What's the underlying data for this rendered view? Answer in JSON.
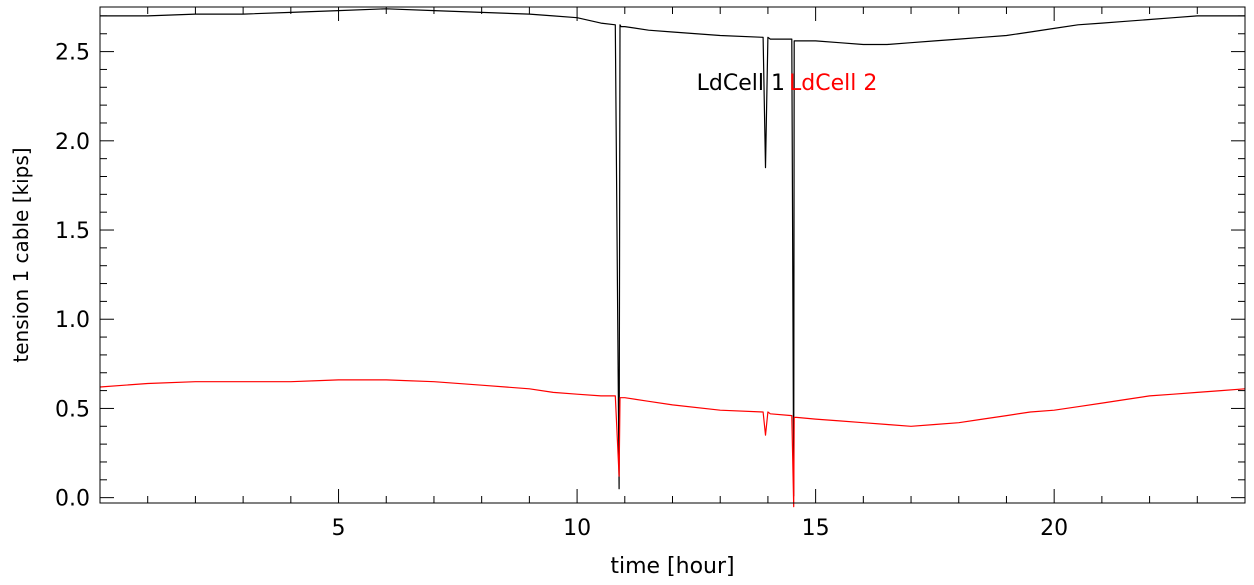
{
  "chart_data": {
    "type": "line",
    "title": "",
    "xlabel": "time [hour]",
    "ylabel": "tension 1 cable [kips]",
    "xlim": [
      0,
      24
    ],
    "ylim": [
      -0.03,
      2.75
    ],
    "x_ticks": [
      5,
      10,
      15,
      20
    ],
    "x_tick_labels": [
      "5",
      "10",
      "15",
      "20"
    ],
    "y_ticks": [
      0.0,
      0.5,
      1.0,
      1.5,
      2.0,
      2.5
    ],
    "y_tick_labels": [
      "0.0",
      "0.5",
      "1.0",
      "1.5",
      "2.0",
      "2.5"
    ],
    "grid": false,
    "legend_position": "top-center",
    "series": [
      {
        "name": "LdCell 1",
        "color": "#000000",
        "x": [
          0,
          1,
          2,
          3,
          4,
          5,
          6,
          7,
          8,
          9,
          9.5,
          10,
          10.5,
          10.8,
          10.88,
          10.9,
          10.92,
          11.0,
          11.5,
          12,
          13,
          13.9,
          13.95,
          14.0,
          14.05,
          14.5,
          14.54,
          14.55,
          14.57,
          14.6,
          15,
          15.5,
          16,
          16.5,
          17,
          17.5,
          18,
          18.5,
          19,
          19.5,
          20,
          20.5,
          21,
          21.5,
          22,
          22.5,
          23,
          23.5,
          24
        ],
        "y": [
          2.7,
          2.7,
          2.71,
          2.71,
          2.72,
          2.73,
          2.74,
          2.73,
          2.72,
          2.71,
          2.7,
          2.69,
          2.66,
          2.65,
          0.05,
          2.65,
          2.64,
          2.64,
          2.62,
          2.61,
          2.59,
          2.58,
          1.85,
          2.58,
          2.57,
          2.57,
          0.01,
          2.56,
          2.56,
          2.56,
          2.56,
          2.55,
          2.54,
          2.54,
          2.55,
          2.56,
          2.57,
          2.58,
          2.59,
          2.61,
          2.63,
          2.65,
          2.66,
          2.67,
          2.68,
          2.69,
          2.7,
          2.7,
          2.7
        ]
      },
      {
        "name": "LdCell 2",
        "color": "#ff0000",
        "x": [
          0,
          1,
          2,
          3,
          4,
          5,
          6,
          7,
          8,
          9,
          9.5,
          10,
          10.5,
          10.8,
          10.88,
          10.9,
          10.92,
          11.0,
          11.5,
          12,
          13,
          13.9,
          13.95,
          14.0,
          14.05,
          14.5,
          14.54,
          14.55,
          14.57,
          14.6,
          15,
          15.5,
          16,
          16.5,
          17,
          17.5,
          18,
          18.5,
          19,
          19.5,
          20,
          20.5,
          21,
          21.5,
          22,
          22.5,
          23,
          23.5,
          24
        ],
        "y": [
          0.62,
          0.64,
          0.65,
          0.65,
          0.65,
          0.66,
          0.66,
          0.65,
          0.63,
          0.61,
          0.59,
          0.58,
          0.57,
          0.57,
          0.12,
          0.56,
          0.56,
          0.56,
          0.54,
          0.52,
          0.49,
          0.48,
          0.35,
          0.48,
          0.47,
          0.46,
          -0.05,
          0.45,
          0.45,
          0.45,
          0.44,
          0.43,
          0.42,
          0.41,
          0.4,
          0.41,
          0.42,
          0.44,
          0.46,
          0.48,
          0.49,
          0.51,
          0.53,
          0.55,
          0.57,
          0.58,
          0.59,
          0.6,
          0.61
        ]
      }
    ]
  }
}
